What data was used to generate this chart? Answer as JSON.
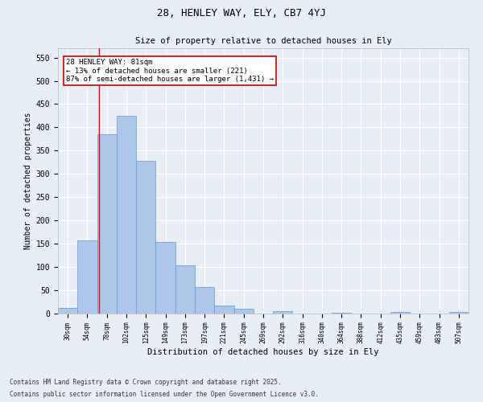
{
  "title_line1": "28, HENLEY WAY, ELY, CB7 4YJ",
  "title_line2": "Size of property relative to detached houses in Ely",
  "xlabel": "Distribution of detached houses by size in Ely",
  "ylabel": "Number of detached properties",
  "categories": [
    "30sqm",
    "54sqm",
    "78sqm",
    "102sqm",
    "125sqm",
    "149sqm",
    "173sqm",
    "197sqm",
    "221sqm",
    "245sqm",
    "269sqm",
    "292sqm",
    "316sqm",
    "340sqm",
    "364sqm",
    "388sqm",
    "412sqm",
    "435sqm",
    "459sqm",
    "483sqm",
    "507sqm"
  ],
  "values": [
    12,
    157,
    385,
    425,
    328,
    153,
    103,
    57,
    18,
    11,
    0,
    5,
    0,
    0,
    2,
    0,
    0,
    3,
    0,
    0,
    3
  ],
  "bar_color": "#aec6e8",
  "bar_edge_color": "#5b9bd5",
  "background_color": "#e8eef5",
  "grid_color": "#ffffff",
  "red_line_x": 1.6,
  "annotation_text": "28 HENLEY WAY: 81sqm\n← 13% of detached houses are smaller (221)\n87% of semi-detached houses are larger (1,431) →",
  "annotation_box_color": "#ffffff",
  "annotation_box_edge": "#cc0000",
  "ylim": [
    0,
    570
  ],
  "yticks": [
    0,
    50,
    100,
    150,
    200,
    250,
    300,
    350,
    400,
    450,
    500,
    550
  ],
  "footer_line1": "Contains HM Land Registry data © Crown copyright and database right 2025.",
  "footer_line2": "Contains public sector information licensed under the Open Government Licence v3.0."
}
